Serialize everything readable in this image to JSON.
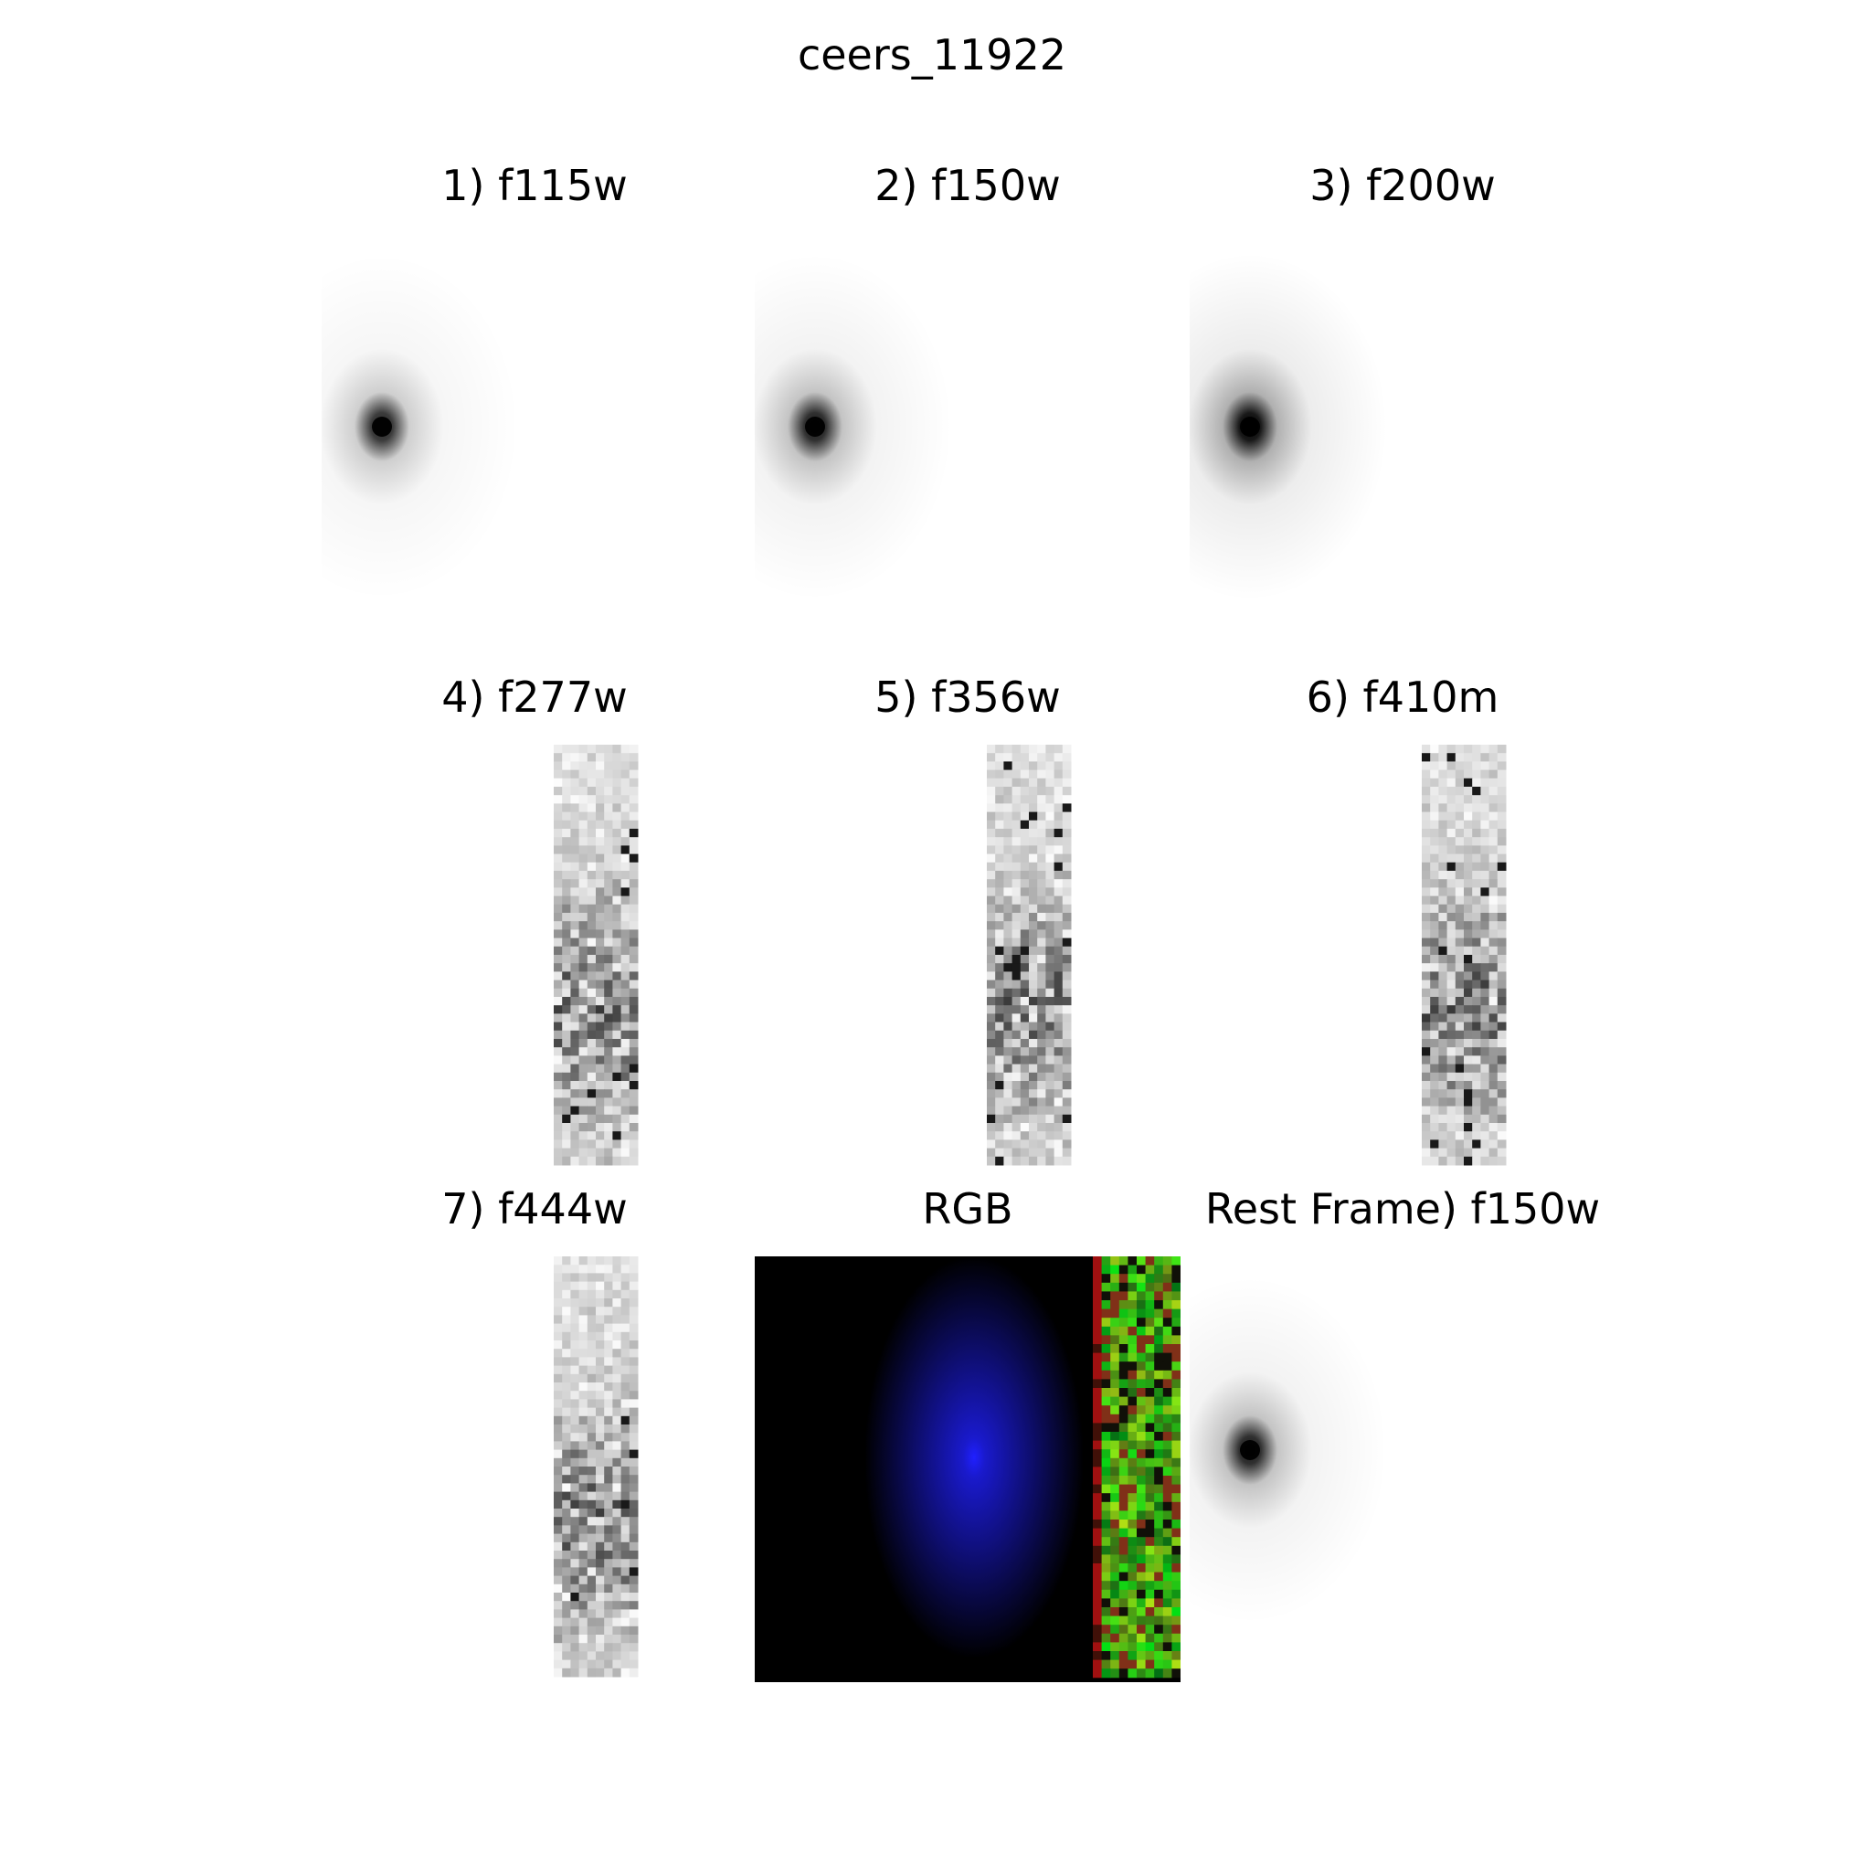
{
  "figure": {
    "title": "ceers_11922"
  },
  "panels": [
    {
      "label": "1) f115w",
      "kind": "point-source",
      "source_strength": 0.85,
      "halo": 0.35
    },
    {
      "label": "2) f150w",
      "kind": "point-source",
      "source_strength": 0.9,
      "halo": 0.45
    },
    {
      "label": "3) f200w",
      "kind": "point-source",
      "source_strength": 1.0,
      "halo": 0.6
    },
    {
      "label": "4) f277w",
      "kind": "noise-strip",
      "seed": 11
    },
    {
      "label": "5) f356w",
      "kind": "noise-strip",
      "seed": 23
    },
    {
      "label": "6) f410m",
      "kind": "noise-strip",
      "seed": 37
    },
    {
      "label": "7) f444w",
      "kind": "noise-strip",
      "seed": 53
    },
    {
      "label": "RGB",
      "kind": "rgb-composite",
      "seed": 71
    },
    {
      "label": "Rest Frame) f150w",
      "kind": "point-source",
      "source_strength": 0.9,
      "halo": 0.45
    }
  ],
  "colors": {
    "background": "#ffffff",
    "rgb_background": "#000000",
    "rgb_blue": "#2020ff",
    "rgb_green": "#70b020",
    "rgb_red": "#b01010"
  }
}
